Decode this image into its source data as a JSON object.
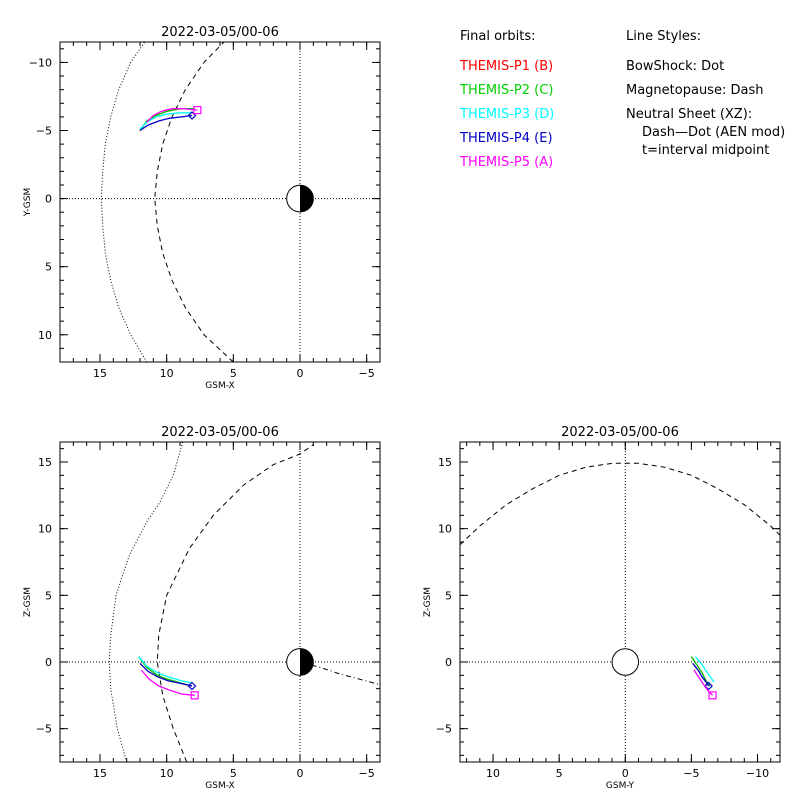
{
  "chart_data": [
    {
      "type": "line",
      "title": "2022-03-05/00-06",
      "xlabel": "GSM-X",
      "ylabel": "Y-GSM",
      "xlim": [
        18,
        -6
      ],
      "ylim": [
        12,
        -11.5
      ],
      "xticks": [
        15,
        10,
        5,
        0,
        -5
      ],
      "yticks": [
        -10,
        -5,
        0,
        5,
        10
      ],
      "xtick_labels": [
        "15",
        "10",
        "5",
        "0",
        "−5"
      ],
      "ytick_labels": [
        "−10",
        "−5",
        "0",
        "5",
        "10"
      ],
      "earth": true,
      "bow_shock": [
        [
          11.5,
          12
        ],
        [
          12.7,
          10
        ],
        [
          13.6,
          8
        ],
        [
          14.2,
          6
        ],
        [
          14.6,
          4
        ],
        [
          14.8,
          2
        ],
        [
          14.9,
          0
        ],
        [
          14.8,
          -2
        ],
        [
          14.6,
          -4
        ],
        [
          14.2,
          -6
        ],
        [
          13.6,
          -8
        ],
        [
          12.7,
          -10
        ],
        [
          11.3,
          -12
        ]
      ],
      "magnetopause": [
        [
          5,
          12
        ],
        [
          7.2,
          10
        ],
        [
          8.6,
          8
        ],
        [
          9.6,
          6
        ],
        [
          10.3,
          4
        ],
        [
          10.7,
          2
        ],
        [
          10.9,
          0
        ],
        [
          10.7,
          -2
        ],
        [
          10.3,
          -4
        ],
        [
          9.6,
          -6
        ],
        [
          8.6,
          -8
        ],
        [
          7.2,
          -10
        ],
        [
          5.2,
          -12
        ]
      ],
      "neutral_sheet": [],
      "series": [
        {
          "name": "THEMIS-P1 (B)",
          "color": "#ff0000",
          "points": [
            [
              12.0,
              -5.0
            ],
            [
              11.5,
              -5.7
            ],
            [
              10.8,
              -6.1
            ],
            [
              10.0,
              -6.4
            ],
            [
              9.0,
              -6.6
            ],
            [
              7.9,
              -6.6
            ]
          ],
          "end_marker": "none"
        },
        {
          "name": "THEMIS-P2 (C)",
          "color": "#00d000",
          "points": [
            [
              12.0,
              -5.0
            ],
            [
              11.5,
              -5.7
            ],
            [
              10.8,
              -6.1
            ],
            [
              10.0,
              -6.4
            ],
            [
              9.0,
              -6.6
            ],
            [
              7.9,
              -6.6
            ]
          ],
          "end_marker": "none"
        },
        {
          "name": "THEMIS-P3 (D)",
          "color": "#00ffff",
          "points": [
            [
              12.0,
              -5.1
            ],
            [
              11.5,
              -5.6
            ],
            [
              10.8,
              -6.0
            ],
            [
              10.0,
              -6.2
            ],
            [
              9.0,
              -6.3
            ],
            [
              8.1,
              -6.3
            ]
          ],
          "end_marker": "none"
        },
        {
          "name": "THEMIS-P4 (E)",
          "color": "#0000c8",
          "points": [
            [
              12.0,
              -5.0
            ],
            [
              11.4,
              -5.4
            ],
            [
              10.6,
              -5.7
            ],
            [
              9.8,
              -5.9
            ],
            [
              8.9,
              -6.0
            ],
            [
              8.1,
              -6.1
            ]
          ],
          "end_marker": "diamond"
        },
        {
          "name": "THEMIS-P5 (A)",
          "color": "#ff00ff",
          "points": [
            [
              11.5,
              -5.6
            ],
            [
              11.0,
              -6.1
            ],
            [
              10.4,
              -6.4
            ],
            [
              9.6,
              -6.6
            ],
            [
              8.7,
              -6.6
            ],
            [
              7.7,
              -6.5
            ]
          ],
          "end_marker": "square"
        }
      ]
    },
    {
      "type": "line",
      "title": "2022-03-05/00-06",
      "xlabel": "GSM-X",
      "ylabel": "Z-GSM",
      "xlim": [
        18,
        -6
      ],
      "ylim": [
        -7.5,
        16.5
      ],
      "xticks": [
        15,
        10,
        5,
        0,
        -5
      ],
      "yticks": [
        -5,
        0,
        5,
        10,
        15
      ],
      "xtick_labels": [
        "15",
        "10",
        "5",
        "0",
        "−5"
      ],
      "ytick_labels": [
        "−5",
        "0",
        "5",
        "10",
        "15"
      ],
      "earth": true,
      "bow_shock": [
        [
          13.0,
          -7.5
        ],
        [
          13.7,
          -5
        ],
        [
          14.2,
          -2
        ],
        [
          14.3,
          0
        ],
        [
          14.2,
          2
        ],
        [
          13.8,
          5
        ],
        [
          12.8,
          8
        ],
        [
          11.5,
          10.5
        ],
        [
          10.5,
          12
        ],
        [
          9.5,
          14
        ],
        [
          8.8,
          16.5
        ]
      ],
      "magnetopause": [
        [
          8.5,
          -7.5
        ],
        [
          9.5,
          -5
        ],
        [
          10.3,
          -2.5
        ],
        [
          10.7,
          0
        ],
        [
          10.6,
          2
        ],
        [
          10.0,
          5
        ],
        [
          8.3,
          8.5
        ],
        [
          6.5,
          11
        ],
        [
          4.2,
          13.3
        ],
        [
          2.0,
          14.8
        ],
        [
          0,
          15.6
        ],
        [
          -1.0,
          16.3
        ]
      ],
      "neutral_sheet": [
        [
          0,
          0
        ],
        [
          -1.5,
          -0.4
        ],
        [
          -3,
          -0.9
        ],
        [
          -4.5,
          -1.3
        ],
        [
          -6,
          -1.7
        ]
      ],
      "series": [
        {
          "name": "THEMIS-P1 (B)",
          "color": "#ff0000",
          "points": [
            [
              12.1,
              0.4
            ],
            [
              11.5,
              -0.4
            ],
            [
              10.7,
              -1.0
            ],
            [
              9.9,
              -1.3
            ],
            [
              8.9,
              -1.6
            ],
            [
              8.1,
              -1.8
            ]
          ],
          "end_marker": "none"
        },
        {
          "name": "THEMIS-P2 (C)",
          "color": "#00d000",
          "points": [
            [
              12.1,
              0.4
            ],
            [
              11.5,
              -0.4
            ],
            [
              10.7,
              -1.0
            ],
            [
              9.9,
              -1.3
            ],
            [
              8.9,
              -1.6
            ],
            [
              8.1,
              -1.8
            ]
          ],
          "end_marker": "none"
        },
        {
          "name": "THEMIS-P3 (D)",
          "color": "#00ffff",
          "points": [
            [
              12.1,
              0.4
            ],
            [
              11.5,
              -0.3
            ],
            [
              10.7,
              -0.8
            ],
            [
              9.9,
              -1.1
            ],
            [
              8.9,
              -1.4
            ],
            [
              8.0,
              -1.6
            ]
          ],
          "end_marker": "none"
        },
        {
          "name": "THEMIS-P4 (E)",
          "color": "#0000c8",
          "points": [
            [
              12.0,
              -0.1
            ],
            [
              11.4,
              -0.7
            ],
            [
              10.7,
              -1.1
            ],
            [
              9.9,
              -1.4
            ],
            [
              9.0,
              -1.6
            ],
            [
              8.1,
              -1.8
            ]
          ],
          "end_marker": "diamond"
        },
        {
          "name": "THEMIS-P5 (A)",
          "color": "#ff00ff",
          "points": [
            [
              11.9,
              -0.6
            ],
            [
              11.3,
              -1.3
            ],
            [
              10.6,
              -1.8
            ],
            [
              9.8,
              -2.1
            ],
            [
              8.9,
              -2.4
            ],
            [
              7.9,
              -2.5
            ]
          ],
          "end_marker": "square"
        }
      ]
    },
    {
      "type": "line",
      "title": "2022-03-05/00-06",
      "xlabel": "GSM-Y",
      "ylabel": "Z-GSM",
      "xlim": [
        12.5,
        -11.7
      ],
      "ylim": [
        -7.5,
        16.5
      ],
      "xticks": [
        10,
        5,
        0,
        -5,
        -10
      ],
      "yticks": [
        -5,
        0,
        5,
        10,
        15
      ],
      "xtick_labels": [
        "10",
        "5",
        "0",
        "−5",
        "−10"
      ],
      "ytick_labels": [
        "−5",
        "0",
        "5",
        "10",
        "15"
      ],
      "earth": false,
      "bow_shock": [],
      "magnetopause": [
        [
          12.5,
          8.8
        ],
        [
          11,
          10.2
        ],
        [
          9,
          11.8
        ],
        [
          7,
          13.0
        ],
        [
          5,
          14.0
        ],
        [
          3,
          14.6
        ],
        [
          1,
          14.9
        ],
        [
          0,
          14.9
        ],
        [
          -1,
          14.9
        ],
        [
          -3,
          14.6
        ],
        [
          -5,
          14.0
        ],
        [
          -7,
          13.0
        ],
        [
          -9,
          11.8
        ],
        [
          -11,
          10.2
        ],
        [
          -11.7,
          9.5
        ]
      ],
      "neutral_sheet": [],
      "series": [
        {
          "name": "THEMIS-P1 (B)",
          "color": "#ff0000",
          "points": [
            [
              -5.0,
              0.4
            ],
            [
              -5.4,
              -0.2
            ],
            [
              -5.8,
              -0.8
            ],
            [
              -6.1,
              -1.4
            ],
            [
              -6.4,
              -1.8
            ]
          ],
          "end_marker": "none"
        },
        {
          "name": "THEMIS-P2 (C)",
          "color": "#00d000",
          "points": [
            [
              -5.0,
              0.4
            ],
            [
              -5.4,
              -0.2
            ],
            [
              -5.8,
              -0.8
            ],
            [
              -6.1,
              -1.4
            ],
            [
              -6.4,
              -1.8
            ]
          ],
          "end_marker": "none"
        },
        {
          "name": "THEMIS-P3 (D)",
          "color": "#00ffff",
          "points": [
            [
              -5.3,
              0.4
            ],
            [
              -5.8,
              -0.2
            ],
            [
              -6.2,
              -0.8
            ],
            [
              -6.5,
              -1.2
            ],
            [
              -6.7,
              -1.5
            ]
          ],
          "end_marker": "none"
        },
        {
          "name": "THEMIS-P4 (E)",
          "color": "#0000c8",
          "points": [
            [
              -5.1,
              -0.1
            ],
            [
              -5.5,
              -0.6
            ],
            [
              -5.8,
              -1.1
            ],
            [
              -6.1,
              -1.5
            ],
            [
              -6.3,
              -1.8
            ]
          ],
          "end_marker": "diamond"
        },
        {
          "name": "THEMIS-P5 (A)",
          "color": "#ff00ff",
          "points": [
            [
              -5.2,
              -0.6
            ],
            [
              -5.6,
              -1.2
            ],
            [
              -6.0,
              -1.8
            ],
            [
              -6.3,
              -2.2
            ],
            [
              -6.6,
              -2.5
            ]
          ],
          "end_marker": "square"
        }
      ]
    }
  ],
  "legend": {
    "orbits_header": "Final orbits:",
    "orbits": [
      {
        "label": "THEMIS-P1 (B)",
        "color": "#ff0000"
      },
      {
        "label": "THEMIS-P2 (C)",
        "color": "#00d000"
      },
      {
        "label": "THEMIS-P3 (D)",
        "color": "#00ffff"
      },
      {
        "label": "THEMIS-P4 (E)",
        "color": "#0000c8"
      },
      {
        "label": "THEMIS-P5 (A)",
        "color": "#ff00ff"
      }
    ],
    "styles_header": "Line Styles:",
    "styles": [
      "BowShock: Dot",
      "Magnetopause: Dash",
      "Neutral Sheet (XZ):",
      "  Dash—Dot (AEN mod)",
      "  t=interval midpoint"
    ]
  }
}
